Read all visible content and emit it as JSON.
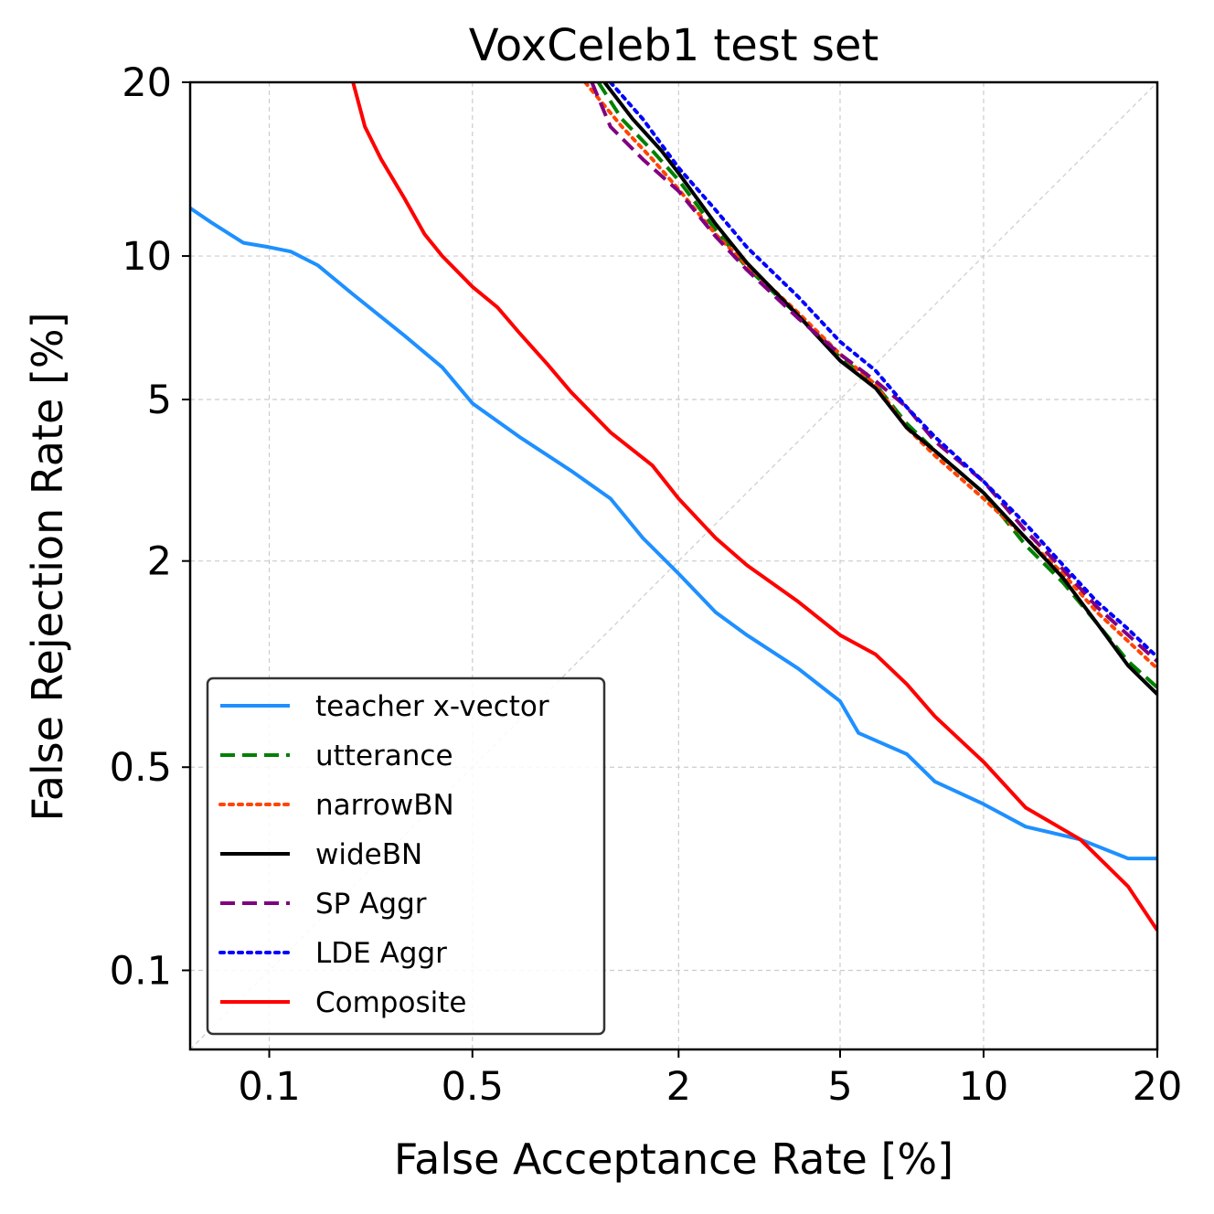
{
  "chart_data": {
    "type": "line",
    "title": "VoxCeleb1 test set",
    "xlabel": "False Acceptance Rate [%]",
    "ylabel": "False Rejection Rate [%]",
    "scale": "probit (normal deviate)",
    "xlim": [
      0.05,
      20
    ],
    "ylim": [
      0.05,
      20
    ],
    "x_ticks": [
      0.1,
      0.5,
      2,
      5,
      10,
      20
    ],
    "x_tick_labels": [
      "0.1",
      "0.5",
      "2",
      "5",
      "10",
      "20"
    ],
    "y_ticks": [
      0.1,
      0.5,
      2,
      5,
      10,
      20
    ],
    "y_tick_labels": [
      "0.1",
      "0.5",
      "2",
      "5",
      "10",
      "20"
    ],
    "grid": true,
    "diagonal_reference": true,
    "legend_position": "lower-left",
    "series": [
      {
        "name": "teacher x-vector",
        "color": "#1e90ff",
        "style": "solid",
        "points": [
          [
            0.05,
            12.3
          ],
          [
            0.06,
            11.6
          ],
          [
            0.08,
            10.6
          ],
          [
            0.1,
            10.4
          ],
          [
            0.12,
            10.2
          ],
          [
            0.15,
            9.6
          ],
          [
            0.2,
            8.4
          ],
          [
            0.3,
            6.9
          ],
          [
            0.4,
            5.9
          ],
          [
            0.5,
            4.9
          ],
          [
            0.7,
            4.1
          ],
          [
            1.0,
            3.4
          ],
          [
            1.3,
            2.9
          ],
          [
            1.6,
            2.3
          ],
          [
            2.0,
            1.85
          ],
          [
            2.5,
            1.45
          ],
          [
            3.0,
            1.25
          ],
          [
            4.0,
            1.0
          ],
          [
            5.0,
            0.8
          ],
          [
            5.5,
            0.64
          ],
          [
            7.0,
            0.55
          ],
          [
            8.0,
            0.45
          ],
          [
            10.0,
            0.38
          ],
          [
            12.0,
            0.32
          ],
          [
            15.0,
            0.29
          ],
          [
            18.0,
            0.25
          ],
          [
            20.0,
            0.25
          ]
        ]
      },
      {
        "name": "utterance",
        "color": "#008000",
        "style": "dashed",
        "points": [
          [
            1.2,
            20.0
          ],
          [
            1.4,
            17.5
          ],
          [
            1.7,
            15.5
          ],
          [
            2.0,
            13.8
          ],
          [
            2.5,
            11.2
          ],
          [
            3.0,
            9.5
          ],
          [
            4.0,
            7.6
          ],
          [
            5.0,
            6.2
          ],
          [
            6.0,
            5.4
          ],
          [
            7.0,
            4.4
          ],
          [
            8.0,
            3.8
          ],
          [
            10.0,
            3.0
          ],
          [
            12.0,
            2.2
          ],
          [
            14.0,
            1.75
          ],
          [
            16.0,
            1.35
          ],
          [
            18.0,
            1.05
          ],
          [
            20.0,
            0.88
          ]
        ]
      },
      {
        "name": "narrowBN",
        "color": "#ff4500",
        "style": "dotted",
        "points": [
          [
            1.1,
            20.0
          ],
          [
            1.4,
            17.0
          ],
          [
            1.7,
            15.0
          ],
          [
            2.0,
            13.3
          ],
          [
            2.5,
            11.0
          ],
          [
            3.0,
            9.6
          ],
          [
            4.0,
            7.7
          ],
          [
            5.0,
            6.3
          ],
          [
            6.0,
            5.4
          ],
          [
            7.0,
            4.3
          ],
          [
            8.0,
            3.7
          ],
          [
            10.0,
            2.9
          ],
          [
            12.0,
            2.3
          ],
          [
            14.0,
            1.85
          ],
          [
            16.0,
            1.45
          ],
          [
            18.0,
            1.2
          ],
          [
            20.0,
            1.0
          ]
        ]
      },
      {
        "name": "wideBN",
        "color": "#000000",
        "style": "solid",
        "points": [
          [
            1.25,
            20.0
          ],
          [
            1.5,
            17.5
          ],
          [
            1.8,
            15.5
          ],
          [
            2.0,
            14.2
          ],
          [
            2.5,
            11.5
          ],
          [
            3.0,
            9.7
          ],
          [
            4.0,
            7.6
          ],
          [
            5.0,
            6.1
          ],
          [
            6.0,
            5.3
          ],
          [
            7.0,
            4.3
          ],
          [
            8.0,
            3.8
          ],
          [
            10.0,
            3.0
          ],
          [
            12.0,
            2.3
          ],
          [
            14.0,
            1.8
          ],
          [
            16.0,
            1.35
          ],
          [
            18.0,
            1.02
          ],
          [
            20.0,
            0.84
          ]
        ]
      },
      {
        "name": "SP Aggr",
        "color": "#800080",
        "style": "dashed",
        "points": [
          [
            1.15,
            20.0
          ],
          [
            1.3,
            17.0
          ],
          [
            1.6,
            15.0
          ],
          [
            2.0,
            13.2
          ],
          [
            2.5,
            10.9
          ],
          [
            3.0,
            9.4
          ],
          [
            4.0,
            7.5
          ],
          [
            5.0,
            6.3
          ],
          [
            6.0,
            5.5
          ],
          [
            7.0,
            4.8
          ],
          [
            8.0,
            4.0
          ],
          [
            10.0,
            3.2
          ],
          [
            12.0,
            2.4
          ],
          [
            14.0,
            1.9
          ],
          [
            16.0,
            1.5
          ],
          [
            18.0,
            1.25
          ],
          [
            20.0,
            1.05
          ]
        ]
      },
      {
        "name": "LDE Aggr",
        "color": "#0000ff",
        "style": "dotted",
        "points": [
          [
            1.3,
            20.0
          ],
          [
            1.6,
            17.5
          ],
          [
            2.0,
            14.5
          ],
          [
            2.5,
            12.2
          ],
          [
            3.0,
            10.4
          ],
          [
            4.0,
            8.3
          ],
          [
            5.0,
            6.7
          ],
          [
            6.0,
            5.8
          ],
          [
            7.0,
            4.8
          ],
          [
            8.0,
            4.1
          ],
          [
            10.0,
            3.2
          ],
          [
            12.0,
            2.5
          ],
          [
            14.0,
            1.95
          ],
          [
            16.0,
            1.55
          ],
          [
            18.0,
            1.3
          ],
          [
            20.0,
            1.08
          ]
        ]
      },
      {
        "name": "Composite",
        "color": "#ff0000",
        "style": "solid",
        "points": [
          [
            0.2,
            20.0
          ],
          [
            0.22,
            17.0
          ],
          [
            0.25,
            15.0
          ],
          [
            0.3,
            12.8
          ],
          [
            0.35,
            11.0
          ],
          [
            0.4,
            10.0
          ],
          [
            0.5,
            8.7
          ],
          [
            0.6,
            7.9
          ],
          [
            0.7,
            7.0
          ],
          [
            0.85,
            6.0
          ],
          [
            1.0,
            5.2
          ],
          [
            1.3,
            4.2
          ],
          [
            1.7,
            3.5
          ],
          [
            2.0,
            2.9
          ],
          [
            2.5,
            2.3
          ],
          [
            3.0,
            1.95
          ],
          [
            4.0,
            1.55
          ],
          [
            5.0,
            1.25
          ],
          [
            6.0,
            1.1
          ],
          [
            7.0,
            0.9
          ],
          [
            8.0,
            0.72
          ],
          [
            10.0,
            0.52
          ],
          [
            12.0,
            0.37
          ],
          [
            15.0,
            0.29
          ],
          [
            18.0,
            0.2
          ],
          [
            20.0,
            0.14
          ]
        ]
      }
    ]
  },
  "legend": {
    "entries": [
      "teacher x-vector",
      "utterance",
      "narrowBN",
      "wideBN",
      "SP Aggr",
      "LDE Aggr",
      "Composite"
    ]
  }
}
